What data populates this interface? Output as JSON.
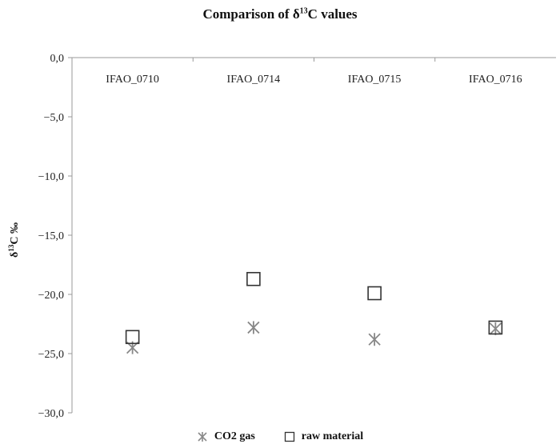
{
  "chart_data": {
    "type": "scatter",
    "title_prefix": "Comparison of δ",
    "title_sup": "13",
    "title_suffix": "C values",
    "ylabel_prefix": "δ",
    "ylabel_sup": "13",
    "ylabel_suffix": "C ‰",
    "xlabel": "",
    "categories": [
      "IFAO_0710",
      "IFAO_0714",
      "IFAO_0715",
      "IFAO_0716"
    ],
    "ylim": [
      -30,
      0
    ],
    "y_ticks": [
      "0,0",
      "−5,0",
      "−10,0",
      "−15,0",
      "−20,0",
      "−25,0",
      "−30,0"
    ],
    "y_tick_values": [
      0,
      -5,
      -10,
      -15,
      -20,
      -25,
      -30
    ],
    "series": [
      {
        "name": "CO2 gas",
        "marker": "asterisk",
        "color": "#888888",
        "values": [
          -24.5,
          -22.8,
          -23.8,
          -22.9
        ]
      },
      {
        "name": "raw material",
        "marker": "square",
        "color": "#333333",
        "values": [
          -23.6,
          -18.7,
          -19.9,
          -22.8
        ]
      }
    ],
    "grid": false,
    "legend_position": "bottom"
  }
}
